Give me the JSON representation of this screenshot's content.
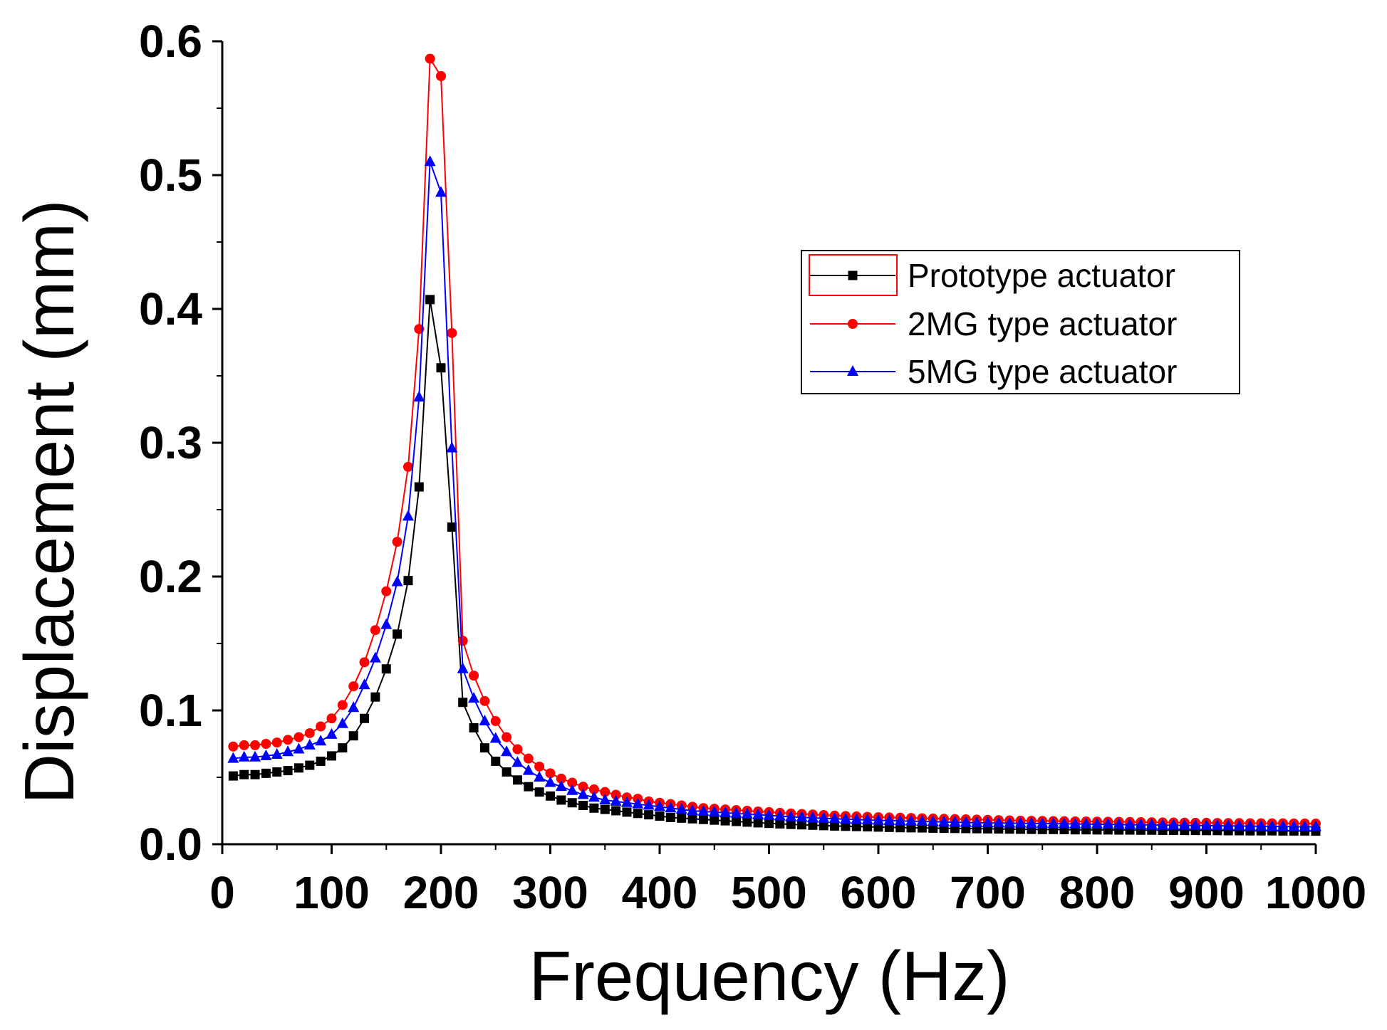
{
  "chart_data": {
    "type": "line",
    "title": "",
    "xlabel": "Frequency (Hz)",
    "ylabel": "Displacement (mm)",
    "xlim": [
      0,
      1000
    ],
    "ylim": [
      0.0,
      0.6
    ],
    "grid": false,
    "legend_position": "upper-right",
    "x_ticks": [
      0,
      100,
      200,
      300,
      400,
      500,
      600,
      700,
      800,
      900,
      1000
    ],
    "x_tick_labels": [
      "0",
      "100",
      "200",
      "300",
      "400",
      "500",
      "600",
      "700",
      "800",
      "900",
      "1000"
    ],
    "y_ticks": [
      0.0,
      0.1,
      0.2,
      0.3,
      0.4,
      0.5,
      0.6
    ],
    "y_tick_labels": [
      "0.0",
      "0.1",
      "0.2",
      "0.3",
      "0.4",
      "0.5",
      "0.6"
    ],
    "x": [
      10,
      20,
      30,
      40,
      50,
      60,
      70,
      80,
      90,
      100,
      110,
      120,
      130,
      140,
      150,
      160,
      170,
      180,
      190,
      200,
      210,
      220,
      230,
      240,
      250,
      260,
      270,
      280,
      290,
      300,
      310,
      320,
      330,
      340,
      350,
      360,
      370,
      380,
      390,
      400,
      410,
      420,
      430,
      440,
      450,
      460,
      470,
      480,
      490,
      500,
      510,
      520,
      530,
      540,
      550,
      560,
      570,
      580,
      590,
      600,
      610,
      620,
      630,
      640,
      650,
      660,
      670,
      680,
      690,
      700,
      710,
      720,
      730,
      740,
      750,
      760,
      770,
      780,
      790,
      800,
      810,
      820,
      830,
      840,
      850,
      860,
      870,
      880,
      890,
      900,
      910,
      920,
      930,
      940,
      950,
      960,
      970,
      980,
      990,
      1000
    ],
    "series": [
      {
        "name": "Prototype actuator",
        "color": "#000000",
        "marker": "square",
        "values": [
          0.051,
          0.052,
          0.052,
          0.053,
          0.054,
          0.055,
          0.057,
          0.059,
          0.062,
          0.066,
          0.072,
          0.081,
          0.094,
          0.11,
          0.131,
          0.157,
          0.197,
          0.267,
          0.407,
          0.356,
          0.237,
          0.106,
          0.087,
          0.072,
          0.062,
          0.054,
          0.048,
          0.043,
          0.039,
          0.036,
          0.033,
          0.031,
          0.029,
          0.027,
          0.026,
          0.025,
          0.024,
          0.023,
          0.022,
          0.021,
          0.02,
          0.0195,
          0.019,
          0.0185,
          0.018,
          0.0175,
          0.017,
          0.0165,
          0.016,
          0.0156,
          0.0152,
          0.0148,
          0.0145,
          0.0142,
          0.0139,
          0.0136,
          0.0134,
          0.0132,
          0.013,
          0.0128,
          0.0126,
          0.0124,
          0.0123,
          0.0122,
          0.012,
          0.0119,
          0.0118,
          0.0117,
          0.0116,
          0.0115,
          0.0114,
          0.0113,
          0.0112,
          0.0111,
          0.011,
          0.011,
          0.0109,
          0.0108,
          0.0108,
          0.0107,
          0.0107,
          0.0106,
          0.0106,
          0.0105,
          0.0105,
          0.0104,
          0.0104,
          0.0103,
          0.0103,
          0.0102,
          0.0102,
          0.0101,
          0.0101,
          0.01,
          0.01,
          0.01,
          0.0099,
          0.0099,
          0.0099,
          0.0098
        ]
      },
      {
        "name": "2MG type actuator",
        "color": "#ff0000",
        "marker": "circle",
        "values": [
          0.073,
          0.074,
          0.074,
          0.075,
          0.076,
          0.078,
          0.08,
          0.083,
          0.088,
          0.094,
          0.104,
          0.118,
          0.136,
          0.16,
          0.189,
          0.226,
          0.282,
          0.385,
          0.587,
          0.574,
          0.382,
          0.152,
          0.126,
          0.107,
          0.092,
          0.08,
          0.071,
          0.064,
          0.058,
          0.053,
          0.049,
          0.046,
          0.043,
          0.041,
          0.039,
          0.037,
          0.035,
          0.034,
          0.032,
          0.031,
          0.03,
          0.029,
          0.028,
          0.027,
          0.0265,
          0.026,
          0.0255,
          0.025,
          0.0245,
          0.024,
          0.0235,
          0.023,
          0.0226,
          0.0222,
          0.0218,
          0.0214,
          0.0211,
          0.0208,
          0.0205,
          0.0202,
          0.02,
          0.0198,
          0.0196,
          0.0194,
          0.0192,
          0.019,
          0.0188,
          0.0186,
          0.0184,
          0.0182,
          0.018,
          0.0178,
          0.0176,
          0.0175,
          0.0174,
          0.0173,
          0.0172,
          0.0171,
          0.017,
          0.0169,
          0.0168,
          0.0167,
          0.0166,
          0.0165,
          0.0164,
          0.0163,
          0.0162,
          0.0161,
          0.016,
          0.016,
          0.0159,
          0.0158,
          0.0158,
          0.0157,
          0.0157,
          0.0156,
          0.0156,
          0.0155,
          0.0155,
          0.0154
        ]
      },
      {
        "name": "5MG type actuator",
        "color": "#0000ff",
        "marker": "triangle",
        "values": [
          0.064,
          0.065,
          0.065,
          0.066,
          0.067,
          0.069,
          0.071,
          0.074,
          0.077,
          0.082,
          0.09,
          0.102,
          0.119,
          0.139,
          0.164,
          0.196,
          0.245,
          0.334,
          0.51,
          0.487,
          0.296,
          0.131,
          0.109,
          0.092,
          0.079,
          0.069,
          0.061,
          0.055,
          0.05,
          0.046,
          0.043,
          0.04,
          0.037,
          0.035,
          0.033,
          0.032,
          0.031,
          0.03,
          0.029,
          0.028,
          0.027,
          0.026,
          0.025,
          0.0245,
          0.024,
          0.0235,
          0.023,
          0.0225,
          0.022,
          0.0215,
          0.021,
          0.0205,
          0.0201,
          0.0197,
          0.0193,
          0.019,
          0.0187,
          0.0184,
          0.0181,
          0.0178,
          0.0176,
          0.0174,
          0.0172,
          0.017,
          0.0168,
          0.0166,
          0.0164,
          0.0162,
          0.016,
          0.0159,
          0.0158,
          0.0157,
          0.0156,
          0.0155,
          0.0154,
          0.0153,
          0.0152,
          0.0151,
          0.015,
          0.0149,
          0.0148,
          0.0147,
          0.0146,
          0.0145,
          0.0144,
          0.0143,
          0.0142,
          0.0141,
          0.014,
          0.0139,
          0.0138,
          0.0137,
          0.0136,
          0.0135,
          0.0134,
          0.0133,
          0.0132,
          0.0131,
          0.013,
          0.013
        ]
      }
    ]
  }
}
